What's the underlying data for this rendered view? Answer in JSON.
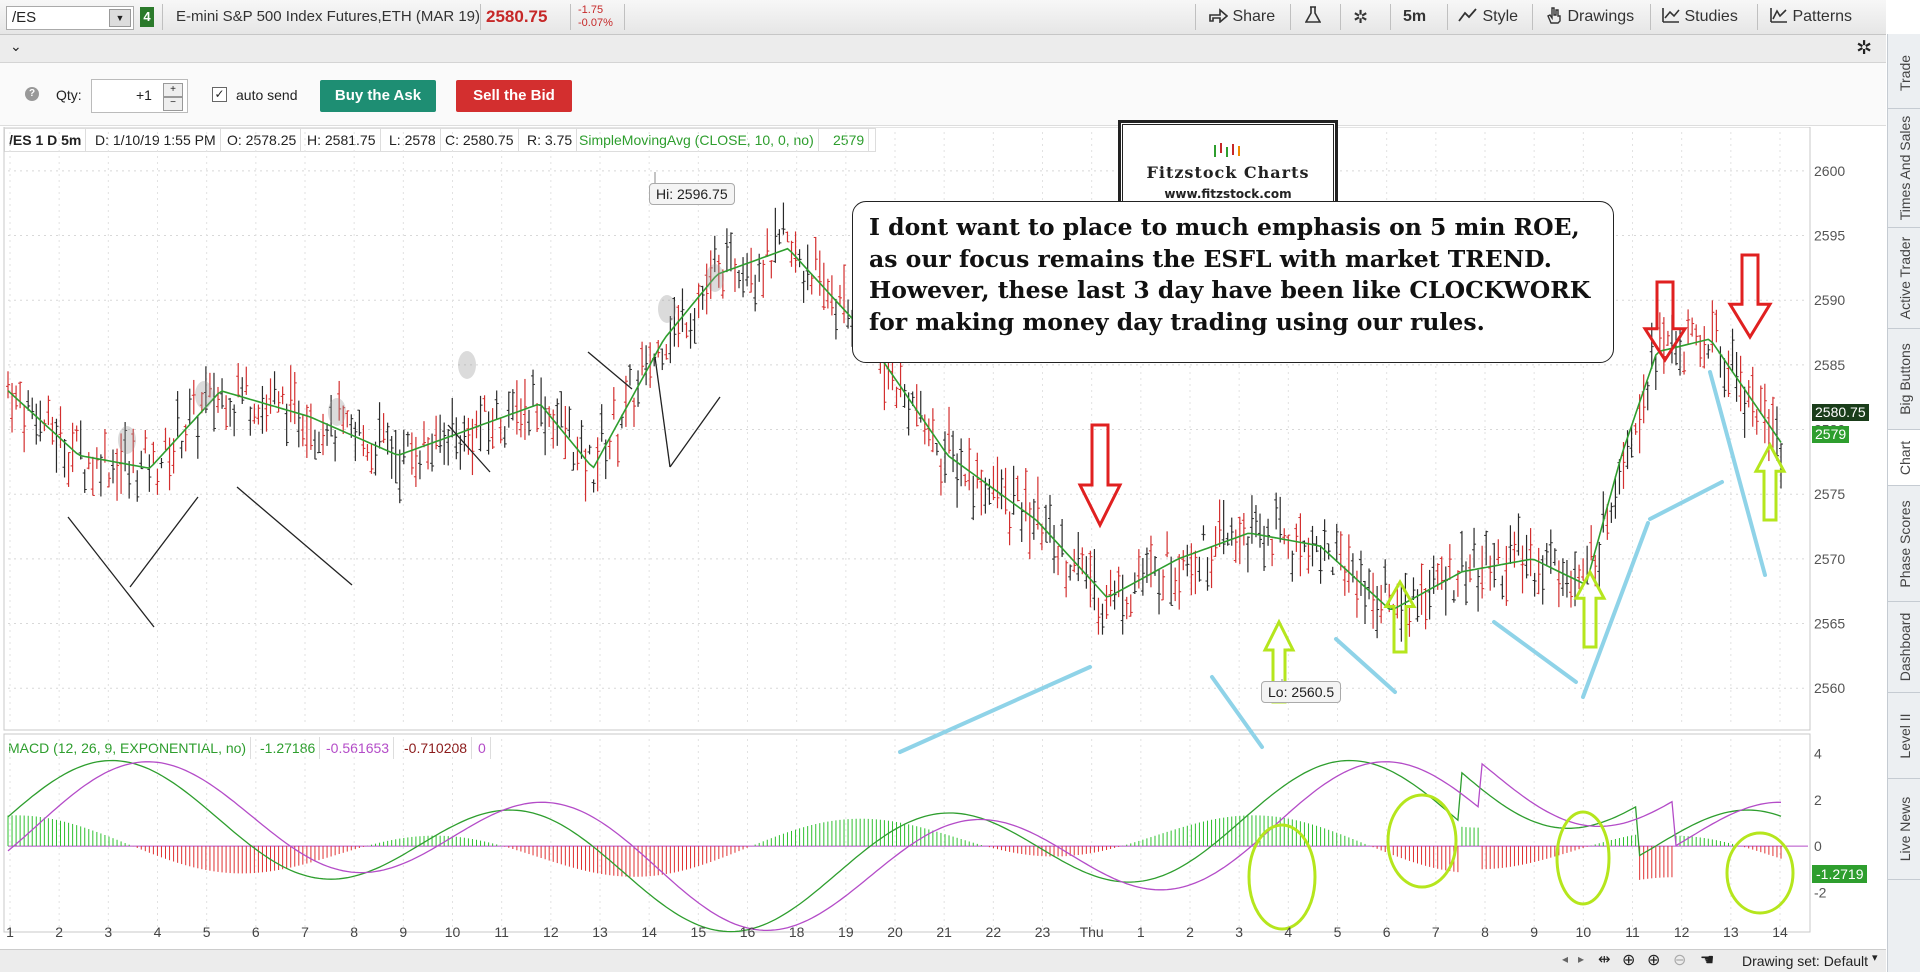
{
  "topbar": {
    "symbol": "/ES",
    "link_group": "4",
    "description": "E-mini S&P 500 Index Futures,ETH (MAR 19)",
    "last_price": "2580.75",
    "net_change": "-1.75",
    "pct_change": "-0.07%",
    "share_label": "Share",
    "timeframe_label": "5m",
    "style_label": "Style",
    "drawings_label": "Drawings",
    "studies_label": "Studies",
    "patterns_label": "Patterns"
  },
  "order": {
    "qty_label": "Qty:",
    "qty_value": "+1",
    "auto_send_label": "auto send",
    "buy_label": "Buy the Ask",
    "sell_label": "Sell the Bid",
    "buy_color": "#1e8e73",
    "sell_color": "#d32f2f"
  },
  "price_header": {
    "symbol_period": "/ES 1 D 5m",
    "date": "D: 1/10/19 1:55 PM",
    "open": "O: 2578.25",
    "high": "H: 2581.75",
    "low": "L: 2578",
    "close": "C: 2580.75",
    "range": "R: 3.75",
    "study": "SimpleMovingAvg (CLOSE, 10, 0, no)",
    "study_value": "2579"
  },
  "macd_header": {
    "study": "MACD (12, 26, 9, EXPONENTIAL, no)",
    "value": "-1.27186",
    "avg": "-0.561653",
    "diff": "-0.710208",
    "zero": "0",
    "last_value_tag": "-1.2719"
  },
  "price_tags": {
    "last": "2580.75",
    "sma": "2579"
  },
  "hi_label": "Hi: 2596.75",
  "lo_label": "Lo: 2560.5",
  "logo": {
    "name": "Fitzstock Charts",
    "url": "www.fitzstock.com"
  },
  "note": "I dont want to place to much emphasis on 5 min ROE, as our focus remains the ESFL with market TREND. However, these last 3 day have been like CLOCKWORK for making money day trading using our rules.",
  "bottom": {
    "drawing_set": "Drawing set: Default"
  },
  "side_tabs": [
    "Trade",
    "Times And Sales",
    "Active Trader",
    "Big Buttons",
    "Chart",
    "Phase Scores",
    "Dashboard",
    "Level II",
    "Live News"
  ],
  "chart_data": {
    "type": "line",
    "price_axis": {
      "ticks": [
        2560,
        2565,
        2570,
        2575,
        2580,
        2585,
        2590,
        2595,
        2600
      ],
      "ylim": [
        2557,
        2602
      ]
    },
    "macd_axis": {
      "ticks": [
        -2,
        0,
        2,
        4
      ],
      "ylim": [
        -3.5,
        4.5
      ]
    },
    "x_labels": [
      "1",
      "2",
      "3",
      "4",
      "5",
      "6",
      "7",
      "8",
      "9",
      "10",
      "11",
      "12",
      "13",
      "14",
      "15",
      "16",
      "18",
      "19",
      "20",
      "21",
      "22",
      "23",
      "Thu",
      "1",
      "2",
      "3",
      "4",
      "5",
      "6",
      "7",
      "8",
      "9",
      "10",
      "11",
      "12",
      "13",
      "14"
    ],
    "series": [
      {
        "name": "SimpleMovingAvg",
        "color": "#2e9e2e",
        "x": [
          0,
          0.04,
          0.08,
          0.12,
          0.17,
          0.22,
          0.26,
          0.3,
          0.33,
          0.37,
          0.4,
          0.44,
          0.48,
          0.53,
          0.58,
          0.62,
          0.66,
          0.7,
          0.74,
          0.78,
          0.82,
          0.86,
          0.89,
          0.91,
          0.93,
          0.96,
          1.0
        ],
        "values": [
          2583,
          2578,
          2577,
          2583,
          2581,
          2578,
          2580,
          2582,
          2577,
          2587,
          2592,
          2594,
          2588,
          2578,
          2573,
          2567,
          2570,
          2572,
          2571,
          2566,
          2569,
          2570,
          2568,
          2578,
          2586,
          2587,
          2579
        ]
      }
    ]
  }
}
